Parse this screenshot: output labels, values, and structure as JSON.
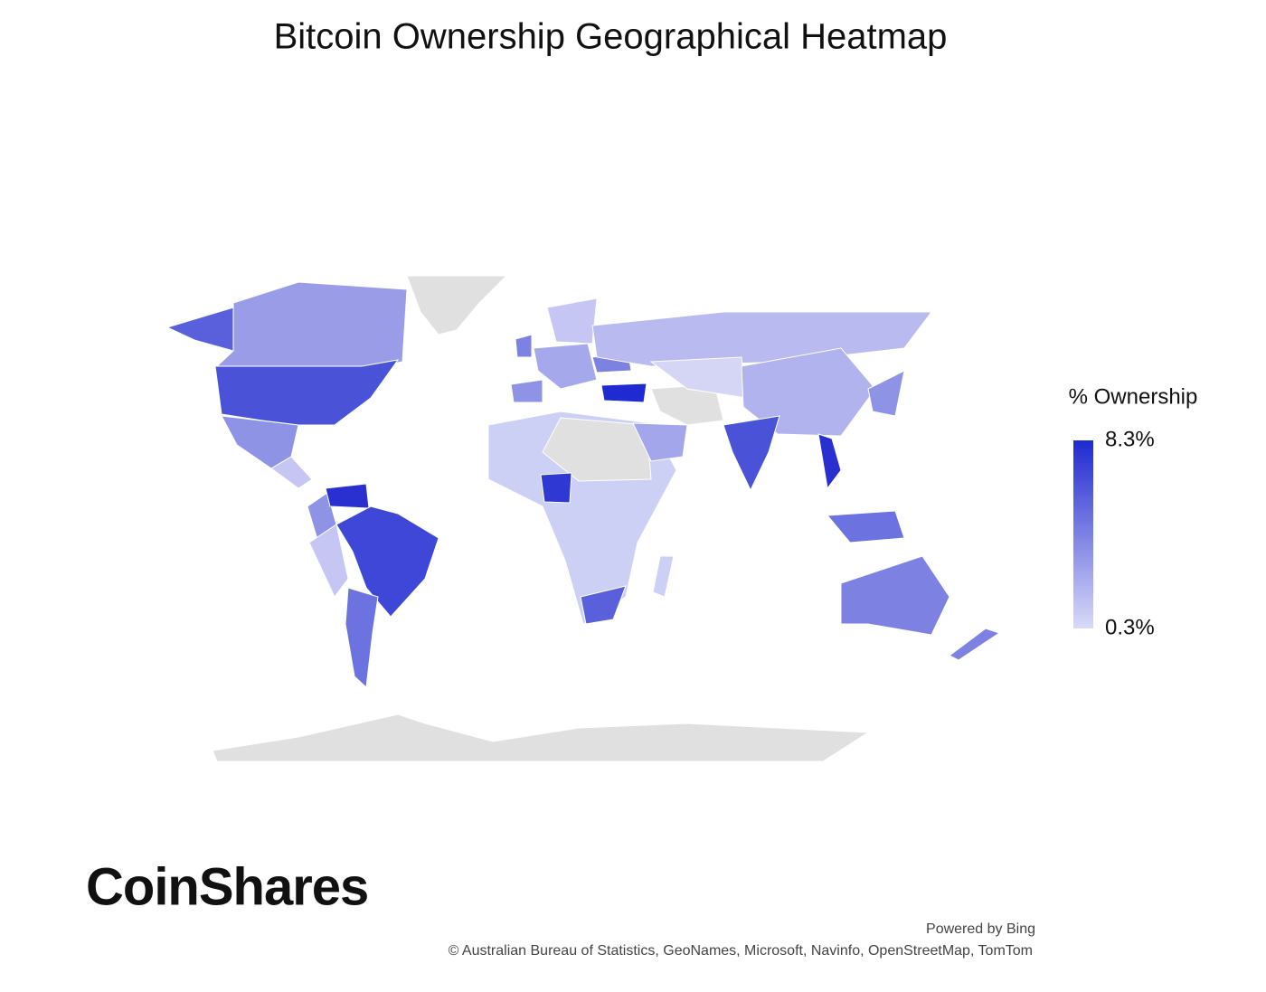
{
  "title": "Bitcoin Ownership Geographical Heatmap",
  "legend": {
    "title": "% Ownership",
    "max": {
      "value": 8.3,
      "label": "8.3%"
    },
    "min": {
      "value": 0.3,
      "label": "0.3%"
    },
    "colors": [
      "#d9daf8",
      "#1f2ad0"
    ]
  },
  "logo": "CoinShares",
  "credits": {
    "powered": "Powered by Bing",
    "attribution": "© Australian Bureau of Statistics, GeoNames, Microsoft, Navinfo, OpenStreetMap, TomTom"
  }
}
